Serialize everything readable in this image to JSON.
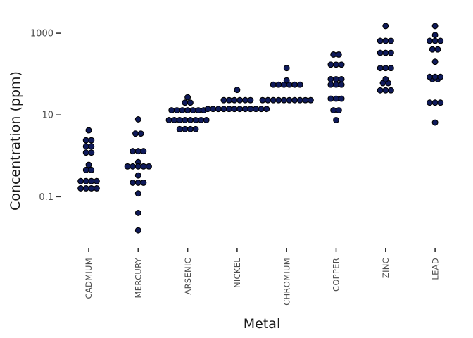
{
  "chart_data": {
    "type": "scatter",
    "subtype": "dotplot",
    "xlabel": "Metal",
    "ylabel": "Concentration (ppm)",
    "y_scale": "log10",
    "ylim": [
      0.009,
      2500
    ],
    "y_ticks": [
      0.1,
      10,
      1000
    ],
    "y_tick_labels": [
      "0.1",
      "10",
      "1000"
    ],
    "grid": false,
    "legend": "none",
    "dot_color": "#0f1a5a",
    "categories": [
      "CADMIUM",
      "MERCURY",
      "ARSENIC",
      "NICKEL",
      "CHROMIUM",
      "COPPER",
      "ZINC",
      "LEAD"
    ],
    "series": [
      {
        "category": "CADMIUM",
        "values": [
          4.2,
          2.4,
          2.4,
          1.7,
          1.7,
          1.2,
          1.2,
          0.6,
          0.45,
          0.45,
          0.24,
          0.24,
          0.24,
          0.24,
          0.16,
          0.16,
          0.16,
          0.16
        ]
      },
      {
        "category": "MERCURY",
        "values": [
          7.8,
          3.5,
          3.5,
          1.3,
          1.3,
          1.3,
          0.7,
          0.55,
          0.55,
          0.55,
          0.55,
          0.55,
          0.33,
          0.22,
          0.22,
          0.22,
          0.12,
          0.04,
          0.015
        ]
      },
      {
        "category": "ARSENIC",
        "values": [
          27,
          20,
          20,
          13,
          13,
          13,
          13,
          13,
          13,
          13,
          7.5,
          7.5,
          7.5,
          7.5,
          7.5,
          7.5,
          7.5,
          7.5,
          4.5,
          4.5,
          4.5,
          4.5
        ]
      },
      {
        "category": "NICKEL",
        "values": [
          41,
          23,
          23,
          23,
          23,
          23,
          23,
          14,
          14,
          14,
          14,
          14,
          14,
          14,
          14,
          14,
          14,
          14,
          14
        ]
      },
      {
        "category": "CHROMIUM",
        "values": [
          140,
          70,
          55,
          55,
          55,
          55,
          55,
          55,
          23,
          23,
          23,
          23,
          23,
          23,
          23,
          23,
          23,
          23
        ]
      },
      {
        "category": "COPPER",
        "values": [
          300,
          300,
          170,
          170,
          170,
          75,
          75,
          75,
          55,
          55,
          55,
          25,
          25,
          25,
          13,
          13,
          7.5
        ]
      },
      {
        "category": "ZINC",
        "values": [
          1500,
          650,
          650,
          650,
          330,
          330,
          330,
          140,
          140,
          140,
          75,
          60,
          60,
          40,
          40,
          40
        ]
      },
      {
        "category": "LEAD",
        "values": [
          1500,
          900,
          650,
          650,
          650,
          400,
          400,
          200,
          85,
          85,
          85,
          75,
          75,
          20,
          20,
          20,
          6.5
        ]
      }
    ]
  }
}
